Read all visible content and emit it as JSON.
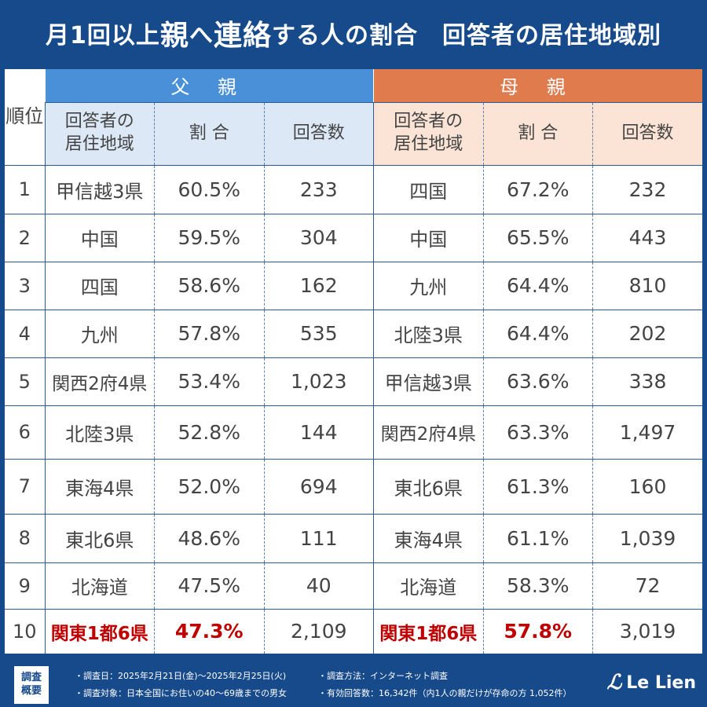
{
  "title": {
    "part1": "月1回以上",
    "big1": "親",
    "part2": "へ",
    "big2": "連絡",
    "part3": "する人の割合　回答者の居住地域別"
  },
  "headers": {
    "rank": "順位",
    "father": "父 親",
    "mother": "母 親",
    "area": "回答者の\n居住地域",
    "ratio": "割 合",
    "count": "回答数"
  },
  "rows": [
    {
      "rank": "1",
      "f_area": "甲信越3県",
      "f_ratio": "60.5%",
      "f_count": "233",
      "m_area": "四国",
      "m_ratio": "67.2%",
      "m_count": "232"
    },
    {
      "rank": "2",
      "f_area": "中国",
      "f_ratio": "59.5%",
      "f_count": "304",
      "m_area": "中国",
      "m_ratio": "65.5%",
      "m_count": "443"
    },
    {
      "rank": "3",
      "f_area": "四国",
      "f_ratio": "58.6%",
      "f_count": "162",
      "m_area": "九州",
      "m_ratio": "64.4%",
      "m_count": "810"
    },
    {
      "rank": "4",
      "f_area": "九州",
      "f_ratio": "57.8%",
      "f_count": "535",
      "m_area": "北陸3県",
      "m_ratio": "64.4%",
      "m_count": "202"
    },
    {
      "rank": "5",
      "f_area": "関西2府4県",
      "f_ratio": "53.4%",
      "f_count": "1,023",
      "m_area": "甲信越3県",
      "m_ratio": "63.6%",
      "m_count": "338"
    },
    {
      "rank": "6",
      "f_area": "北陸3県",
      "f_ratio": "52.8%",
      "f_count": "144",
      "m_area": "関西2府4県",
      "m_ratio": "63.3%",
      "m_count": "1,497"
    },
    {
      "rank": "7",
      "f_area": "東海4県",
      "f_ratio": "52.0%",
      "f_count": "694",
      "m_area": "東北6県",
      "m_ratio": "61.3%",
      "m_count": "160"
    },
    {
      "rank": "8",
      "f_area": "東北6県",
      "f_ratio": "48.6%",
      "f_count": "111",
      "m_area": "東海4県",
      "m_ratio": "61.1%",
      "m_count": "1,039"
    },
    {
      "rank": "9",
      "f_area": "北海道",
      "f_ratio": "47.5%",
      "f_count": "40",
      "m_area": "北海道",
      "m_ratio": "58.3%",
      "m_count": "72"
    },
    {
      "rank": "10",
      "f_area": "関東1都6県",
      "f_ratio": "47.3%",
      "f_count": "2,109",
      "m_area": "関東1都6県",
      "m_ratio": "57.8%",
      "m_count": "3,019"
    }
  ],
  "highlight_color": "#c00000",
  "footer": {
    "badge": "調査\n概要",
    "date": "・調査日：2025年2月21日(金)～2025年2月25日(火)",
    "method": "・調査方法：インターネット調査",
    "target": "・調査対象：日本全国にお住いの40～69歳までの男女",
    "responses": "・有効回答数：16,342件（内1人の親だけが存命の方 1,052件）",
    "logo": "Le Lien"
  }
}
